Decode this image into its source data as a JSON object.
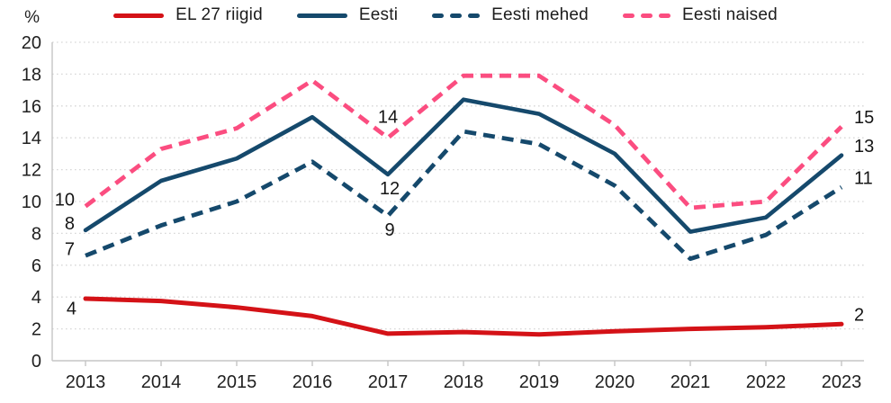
{
  "colors": {
    "el27": "#d41217",
    "eesti": "#15496c",
    "mehed": "#15496c",
    "naised": "#fb4d80",
    "grid": "#d7d7d7",
    "axis": "#c5c5c5",
    "text": "#1f1f1f"
  },
  "chart_data": {
    "type": "line",
    "title": "",
    "xlabel": "",
    "ylabel": "%",
    "ylim": [
      0,
      20
    ],
    "ytick_step": 2,
    "grid": "horizontal-dotted",
    "legend_position": "top",
    "categories": [
      "2013",
      "2014",
      "2015",
      "2016",
      "2017",
      "2018",
      "2019",
      "2020",
      "2021",
      "2022",
      "2023"
    ],
    "series": [
      {
        "key": "el27",
        "name": "EL 27 riigid",
        "color": "#d41217",
        "style": "solid",
        "stroke_width": 5,
        "values": [
          3.9,
          3.75,
          3.35,
          2.8,
          1.7,
          1.8,
          1.65,
          1.85,
          2.0,
          2.1,
          2.3
        ]
      },
      {
        "key": "eesti",
        "name": "Eesti",
        "color": "#15496c",
        "style": "solid",
        "stroke_width": 4.6,
        "values": [
          8.2,
          11.3,
          12.7,
          15.3,
          11.7,
          16.4,
          15.5,
          13.0,
          8.1,
          9.0,
          12.9
        ]
      },
      {
        "key": "mehed",
        "name": "Eesti mehed",
        "color": "#15496c",
        "style": "dashed",
        "stroke_width": 4.8,
        "values": [
          6.6,
          8.5,
          10.0,
          12.5,
          9.1,
          14.4,
          13.6,
          11.0,
          6.4,
          7.9,
          10.9
        ]
      },
      {
        "key": "naised",
        "name": "Eesti naised",
        "color": "#fb4d80",
        "style": "dashed",
        "stroke_width": 4.8,
        "values": [
          9.7,
          13.3,
          14.6,
          17.6,
          14.0,
          17.9,
          17.9,
          14.8,
          9.6,
          10.0,
          14.7
        ]
      }
    ],
    "annotations": [
      {
        "year": "2013",
        "series": "naised",
        "text": "10",
        "pos": "left"
      },
      {
        "year": "2013",
        "series": "eesti",
        "text": "8",
        "pos": "left"
      },
      {
        "year": "2013",
        "series": "mehed",
        "text": "7",
        "pos": "left"
      },
      {
        "year": "2013",
        "series": "el27",
        "text": "4",
        "pos": "left-below"
      },
      {
        "year": "2017",
        "series": "naised",
        "text": "14",
        "pos": "above"
      },
      {
        "year": "2017",
        "series": "eesti",
        "text": "12",
        "pos": "below"
      },
      {
        "year": "2017",
        "series": "mehed",
        "text": "9",
        "pos": "below"
      },
      {
        "year": "2023",
        "series": "naised",
        "text": "15",
        "pos": "right"
      },
      {
        "year": "2023",
        "series": "eesti",
        "text": "13",
        "pos": "right"
      },
      {
        "year": "2023",
        "series": "mehed",
        "text": "11",
        "pos": "right"
      },
      {
        "year": "2023",
        "series": "el27",
        "text": "2",
        "pos": "right"
      }
    ]
  }
}
